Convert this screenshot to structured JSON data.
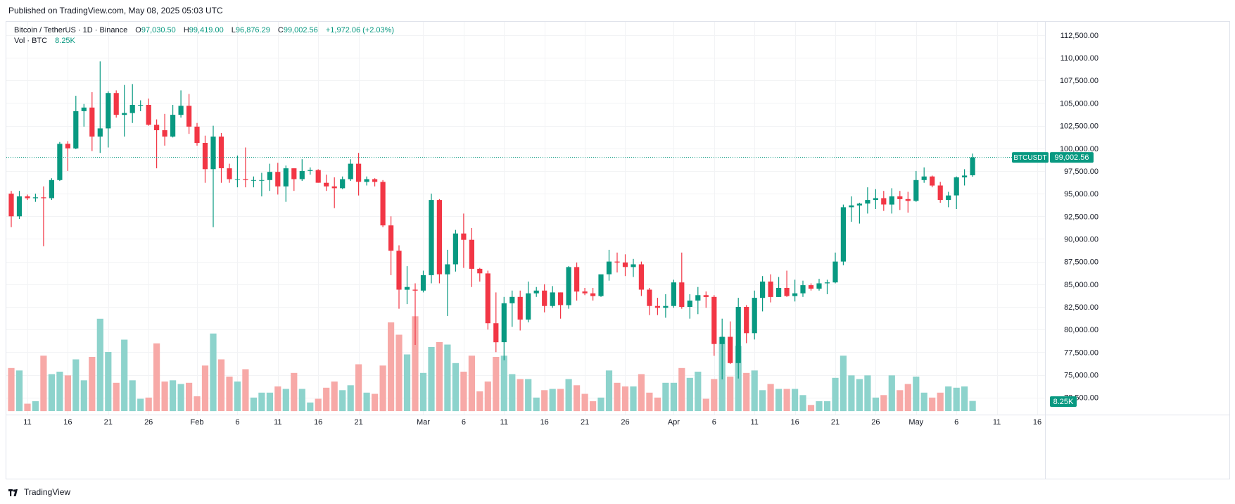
{
  "header": {
    "published": "Published on TradingView.com, May 08, 2025 05:03 UTC"
  },
  "legend": {
    "symbol": "Bitcoin / TetherUS · 1D · Binance",
    "o_label": "O",
    "o_value": "97,030.50",
    "h_label": "H",
    "h_value": "99,419.00",
    "l_label": "L",
    "l_value": "96,876.29",
    "c_label": "C",
    "c_value": "99,002.56",
    "change": "+1,972.06 (+2.03%)",
    "vol_label": "Vol · BTC",
    "vol_value": "8.25K"
  },
  "footer": {
    "brand": "TradingView"
  },
  "colors": {
    "up": "#089981",
    "down": "#f23645",
    "vol_up": "#8dd3cc",
    "vol_down": "#f7a9a7",
    "grid": "#f2f3f5",
    "axis_text": "#131722"
  },
  "chart_data": {
    "type": "candlestick",
    "symbol_tag": "BTCUSDT",
    "last_price_label": "99,002.56",
    "last_price": 99002.56,
    "last_volume_label": "8.25K",
    "y_axis": {
      "ylim": [
        71000,
        113500
      ],
      "ticks": [
        112500,
        110000,
        107500,
        105000,
        102500,
        100000,
        97500,
        95000,
        92500,
        90000,
        87500,
        85000,
        82500,
        80000,
        77500,
        75000,
        72500
      ],
      "tick_labels": [
        "112,500.00",
        "110,000.00",
        "107,500.00",
        "105,000.00",
        "102,500.00",
        "100,000.00",
        "97,500.00",
        "95,000.00",
        "92,500.00",
        "90,000.00",
        "87,500.00",
        "85,000.00",
        "82,500.00",
        "80,000.00",
        "77,500.00",
        "75,000.00",
        "72,500.00"
      ]
    },
    "x_axis": {
      "labels": [
        {
          "label": "11",
          "date": "2025-01-11"
        },
        {
          "label": "16",
          "date": "2025-01-16"
        },
        {
          "label": "21",
          "date": "2025-01-21"
        },
        {
          "label": "26",
          "date": "2025-01-26"
        },
        {
          "label": "Feb",
          "date": "2025-02-01"
        },
        {
          "label": "6",
          "date": "2025-02-06"
        },
        {
          "label": "11",
          "date": "2025-02-11"
        },
        {
          "label": "16",
          "date": "2025-02-16"
        },
        {
          "label": "21",
          "date": "2025-02-21"
        },
        {
          "label": "Mar",
          "date": "2025-03-01"
        },
        {
          "label": "6",
          "date": "2025-03-06"
        },
        {
          "label": "11",
          "date": "2025-03-11"
        },
        {
          "label": "16",
          "date": "2025-03-16"
        },
        {
          "label": "21",
          "date": "2025-03-21"
        },
        {
          "label": "26",
          "date": "2025-03-26"
        },
        {
          "label": "Apr",
          "date": "2025-04-01"
        },
        {
          "label": "6",
          "date": "2025-04-06"
        },
        {
          "label": "11",
          "date": "2025-04-11"
        },
        {
          "label": "16",
          "date": "2025-04-16"
        },
        {
          "label": "21",
          "date": "2025-04-21"
        },
        {
          "label": "26",
          "date": "2025-04-26"
        },
        {
          "label": "May",
          "date": "2025-05-01"
        },
        {
          "label": "6",
          "date": "2025-05-06"
        },
        {
          "label": "11",
          "date": "2025-05-11"
        },
        {
          "label": "16",
          "date": "2025-05-16"
        }
      ],
      "first_date": "2025-01-09",
      "last_slot_date": "2025-05-19"
    },
    "columns": [
      "date",
      "open",
      "high",
      "low",
      "close",
      "volume"
    ],
    "volume_ylim": [
      0,
      80000
    ],
    "candles": [
      [
        "2025-01-09",
        95000,
        95300,
        91300,
        92500,
        35000
      ],
      [
        "2025-01-10",
        92500,
        95300,
        92200,
        94700,
        33000
      ],
      [
        "2025-01-11",
        94700,
        94900,
        94300,
        94500,
        6000
      ],
      [
        "2025-01-12",
        94500,
        95000,
        94100,
        94600,
        8000
      ],
      [
        "2025-01-13",
        94600,
        95800,
        89200,
        94500,
        45000
      ],
      [
        "2025-01-14",
        94500,
        96700,
        94300,
        96500,
        30000
      ],
      [
        "2025-01-15",
        96500,
        100700,
        96400,
        100500,
        32000
      ],
      [
        "2025-01-16",
        100500,
        100800,
        97500,
        100000,
        29000
      ],
      [
        "2025-01-17",
        100000,
        105800,
        99900,
        104100,
        42000
      ],
      [
        "2025-01-18",
        104100,
        104900,
        102400,
        104500,
        25000
      ],
      [
        "2025-01-19",
        104500,
        106200,
        99700,
        101300,
        44000
      ],
      [
        "2025-01-20",
        101300,
        109600,
        99500,
        102200,
        75000
      ],
      [
        "2025-01-21",
        102200,
        106300,
        100100,
        106100,
        48000
      ],
      [
        "2025-01-22",
        106100,
        106400,
        103400,
        103700,
        23000
      ],
      [
        "2025-01-23",
        103700,
        107000,
        101300,
        103900,
        58000
      ],
      [
        "2025-01-24",
        103900,
        107100,
        102800,
        104800,
        25000
      ],
      [
        "2025-01-25",
        104800,
        105300,
        104100,
        104800,
        10000
      ],
      [
        "2025-01-26",
        104800,
        105500,
        102500,
        102600,
        11000
      ],
      [
        "2025-01-27",
        102600,
        103200,
        97800,
        102000,
        55000
      ],
      [
        "2025-01-28",
        102000,
        103800,
        100300,
        101300,
        24000
      ],
      [
        "2025-01-29",
        101300,
        104800,
        101200,
        103700,
        25000
      ],
      [
        "2025-01-30",
        103700,
        106400,
        103400,
        104700,
        22000
      ],
      [
        "2025-01-31",
        104700,
        106000,
        101600,
        102400,
        23000
      ],
      [
        "2025-02-01",
        102400,
        102800,
        100300,
        100600,
        12000
      ],
      [
        "2025-02-02",
        100600,
        101400,
        96200,
        97700,
        37000
      ],
      [
        "2025-02-03",
        97700,
        102500,
        91300,
        101300,
        63000
      ],
      [
        "2025-02-04",
        101300,
        101700,
        96200,
        97800,
        42000
      ],
      [
        "2025-02-05",
        97800,
        98300,
        96200,
        96600,
        28000
      ],
      [
        "2025-02-06",
        96600,
        99200,
        95700,
        96600,
        24000
      ],
      [
        "2025-02-07",
        96600,
        100100,
        95700,
        96500,
        34000
      ],
      [
        "2025-02-08",
        96500,
        96900,
        95700,
        96500,
        11000
      ],
      [
        "2025-02-09",
        96500,
        97300,
        94700,
        96500,
        15000
      ],
      [
        "2025-02-10",
        96500,
        98300,
        95300,
        97400,
        15000
      ],
      [
        "2025-02-11",
        97400,
        98400,
        94900,
        95800,
        20000
      ],
      [
        "2025-02-12",
        95800,
        98100,
        94100,
        97800,
        18000
      ],
      [
        "2025-02-13",
        97800,
        97800,
        95300,
        96600,
        31000
      ],
      [
        "2025-02-14",
        96600,
        98800,
        96400,
        97500,
        18000
      ],
      [
        "2025-02-15",
        97500,
        97900,
        97100,
        97600,
        7000
      ],
      [
        "2025-02-16",
        97600,
        97700,
        96200,
        96200,
        10000
      ],
      [
        "2025-02-17",
        96200,
        97100,
        95300,
        95800,
        19000
      ],
      [
        "2025-02-18",
        95800,
        96800,
        93400,
        95600,
        24000
      ],
      [
        "2025-02-19",
        95600,
        96900,
        95500,
        96600,
        17000
      ],
      [
        "2025-02-20",
        96600,
        98800,
        96400,
        98300,
        21000
      ],
      [
        "2025-02-21",
        98300,
        99500,
        94800,
        96300,
        38000
      ],
      [
        "2025-02-22",
        96300,
        96900,
        95900,
        96600,
        15000
      ],
      [
        "2025-02-23",
        96600,
        96700,
        95800,
        96300,
        14000
      ],
      [
        "2025-02-24",
        96300,
        96500,
        91300,
        91500,
        37000
      ],
      [
        "2025-02-25",
        91500,
        92500,
        86000,
        88700,
        72000
      ],
      [
        "2025-02-26",
        88700,
        89300,
        82300,
        84400,
        62000
      ],
      [
        "2025-02-27",
        84400,
        87000,
        82800,
        84700,
        46000
      ],
      [
        "2025-02-28",
        84400,
        85100,
        78300,
        84300,
        77000
      ],
      [
        "2025-03-01",
        84300,
        86500,
        84100,
        86000,
        31000
      ],
      [
        "2025-03-02",
        86000,
        95000,
        85100,
        94300,
        52000
      ],
      [
        "2025-03-03",
        94300,
        94400,
        85100,
        86100,
        56000
      ],
      [
        "2025-03-04",
        86100,
        88800,
        81500,
        87200,
        54000
      ],
      [
        "2025-03-05",
        87200,
        91000,
        86400,
        90600,
        39000
      ],
      [
        "2025-03-06",
        90600,
        92800,
        86800,
        89900,
        32000
      ],
      [
        "2025-03-07",
        89900,
        91200,
        84700,
        86700,
        45000
      ],
      [
        "2025-03-08",
        86700,
        86800,
        85300,
        86200,
        16000
      ],
      [
        "2025-03-09",
        86200,
        86500,
        80000,
        80700,
        24000
      ],
      [
        "2025-03-10",
        80700,
        84100,
        77500,
        78600,
        44000
      ],
      [
        "2025-03-11",
        78600,
        83600,
        76600,
        82900,
        45000
      ],
      [
        "2025-03-12",
        82900,
        84300,
        80300,
        83600,
        30000
      ],
      [
        "2025-03-13",
        83600,
        84300,
        79900,
        81100,
        26000
      ],
      [
        "2025-03-14",
        81100,
        85300,
        80800,
        84000,
        26000
      ],
      [
        "2025-03-15",
        84000,
        84700,
        83600,
        84300,
        11000
      ],
      [
        "2025-03-16",
        84300,
        85000,
        81900,
        82600,
        17000
      ],
      [
        "2025-03-17",
        82600,
        84800,
        82400,
        84100,
        18000
      ],
      [
        "2025-03-18",
        84100,
        84100,
        81200,
        82700,
        18000
      ],
      [
        "2025-03-19",
        82700,
        87000,
        82300,
        86900,
        26000
      ],
      [
        "2025-03-20",
        86900,
        87400,
        83200,
        84200,
        21000
      ],
      [
        "2025-03-21",
        84200,
        84600,
        83800,
        84000,
        14000
      ],
      [
        "2025-03-22",
        84000,
        84600,
        83200,
        83700,
        8000
      ],
      [
        "2025-03-23",
        83700,
        86000,
        83600,
        86100,
        11000
      ],
      [
        "2025-03-24",
        86100,
        88800,
        85400,
        87500,
        33000
      ],
      [
        "2025-03-25",
        87500,
        88500,
        86300,
        87400,
        23000
      ],
      [
        "2025-03-26",
        87400,
        88300,
        85900,
        86900,
        20000
      ],
      [
        "2025-03-27",
        86900,
        87800,
        85800,
        87200,
        20000
      ],
      [
        "2025-03-28",
        87200,
        87500,
        83700,
        84400,
        30000
      ],
      [
        "2025-03-29",
        84400,
        84600,
        81600,
        82600,
        15000
      ],
      [
        "2025-03-30",
        82600,
        83500,
        81600,
        82400,
        11000
      ],
      [
        "2025-03-31",
        82400,
        83900,
        81300,
        82600,
        23000
      ],
      [
        "2025-04-01",
        82600,
        85500,
        82400,
        85200,
        23000
      ],
      [
        "2025-04-02",
        85200,
        88500,
        82300,
        82500,
        35000
      ],
      [
        "2025-04-03",
        82500,
        83900,
        81200,
        83200,
        27000
      ],
      [
        "2025-04-04",
        83200,
        84700,
        81700,
        83800,
        32000
      ],
      [
        "2025-04-05",
        83800,
        84200,
        82400,
        83600,
        10000
      ],
      [
        "2025-04-06",
        83600,
        83800,
        77100,
        78400,
        26000
      ],
      [
        "2025-04-07",
        78400,
        81200,
        74500,
        79200,
        60000
      ],
      [
        "2025-04-08",
        79200,
        80900,
        76200,
        76300,
        28000
      ],
      [
        "2025-04-09",
        76300,
        83500,
        74600,
        82500,
        53000
      ],
      [
        "2025-04-10",
        82500,
        82700,
        78500,
        79600,
        31000
      ],
      [
        "2025-04-11",
        79600,
        84300,
        78900,
        83500,
        33000
      ],
      [
        "2025-04-12",
        83500,
        85900,
        82000,
        85300,
        17000
      ],
      [
        "2025-04-13",
        85300,
        86100,
        83000,
        83600,
        22000
      ],
      [
        "2025-04-14",
        83600,
        85800,
        83600,
        84600,
        18000
      ],
      [
        "2025-04-15",
        84600,
        86500,
        83600,
        83700,
        18000
      ],
      [
        "2025-04-16",
        83700,
        85500,
        83100,
        84000,
        18000
      ],
      [
        "2025-04-17",
        84000,
        85400,
        83600,
        84900,
        13000
      ],
      [
        "2025-04-18",
        84900,
        85100,
        84300,
        84500,
        5000
      ],
      [
        "2025-04-19",
        84500,
        85600,
        84300,
        85100,
        8000
      ],
      [
        "2025-04-20",
        85100,
        85500,
        83900,
        85200,
        8000
      ],
      [
        "2025-04-21",
        85200,
        88500,
        85100,
        87500,
        27000
      ],
      [
        "2025-04-22",
        87500,
        93800,
        87100,
        93500,
        45000
      ],
      [
        "2025-04-23",
        93500,
        94700,
        91900,
        93700,
        29000
      ],
      [
        "2025-04-24",
        93700,
        94000,
        91700,
        93900,
        26000
      ],
      [
        "2025-04-25",
        93900,
        95700,
        92800,
        94300,
        29000
      ],
      [
        "2025-04-26",
        94300,
        95500,
        93300,
        94500,
        11000
      ],
      [
        "2025-04-27",
        94500,
        95300,
        93100,
        93800,
        13000
      ],
      [
        "2025-04-28",
        93800,
        95600,
        92800,
        94700,
        29000
      ],
      [
        "2025-04-29",
        94700,
        95300,
        93200,
        94400,
        17000
      ],
      [
        "2025-04-30",
        94400,
        95200,
        92900,
        94200,
        22000
      ],
      [
        "2025-05-01",
        94200,
        97500,
        94100,
        96500,
        28000
      ],
      [
        "2025-05-02",
        96500,
        97900,
        96200,
        96900,
        15000
      ],
      [
        "2025-05-03",
        96900,
        97000,
        95700,
        95900,
        11000
      ],
      [
        "2025-05-04",
        95900,
        96300,
        94000,
        94300,
        15000
      ],
      [
        "2025-05-05",
        94300,
        95200,
        93500,
        94800,
        20000
      ],
      [
        "2025-05-06",
        94800,
        96900,
        93300,
        96800,
        19000
      ],
      [
        "2025-05-07",
        96800,
        97700,
        95900,
        97000,
        20000
      ],
      [
        "2025-05-08",
        97030.5,
        99419,
        96876.29,
        99002.56,
        8250
      ]
    ]
  }
}
